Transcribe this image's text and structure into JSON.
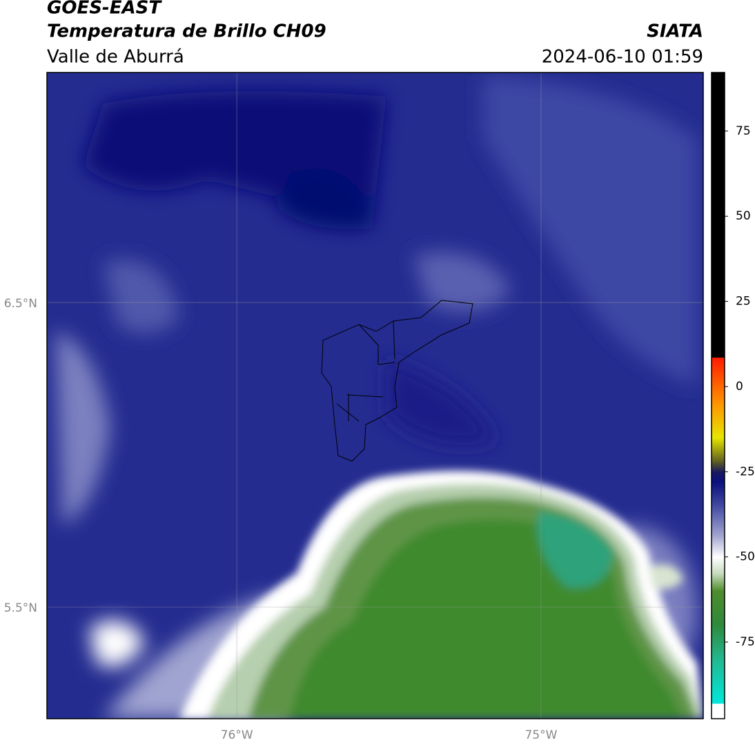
{
  "header": {
    "title": "GOES-EAST",
    "subtitle": "Temperatura de Brillo CH09",
    "region": "Valle de Aburrá",
    "source": "SIATA",
    "datetime": "2024-06-10 01:59"
  },
  "map": {
    "xlim": [
      -76.624,
      -74.467
    ],
    "ylim": [
      5.133,
      7.255
    ],
    "xticks": [
      {
        "value": -76,
        "label": "76°W"
      },
      {
        "value": -75,
        "label": "75°W"
      }
    ],
    "yticks": [
      {
        "value": 5.5,
        "label": "5.5°N"
      },
      {
        "value": 6.5,
        "label": "6.5°N"
      }
    ],
    "grid": true
  },
  "colorbar": {
    "lim": [
      -97.5,
      92.2
    ],
    "ticks": [
      -75,
      -50,
      -25,
      0,
      25,
      50,
      75
    ],
    "stops": [
      {
        "value": -97.5,
        "color": "#ffffff"
      },
      {
        "value": -93,
        "color": "#ffffff"
      },
      {
        "value": -93,
        "color": "#00e8dc"
      },
      {
        "value": -80,
        "color": "#22b890"
      },
      {
        "value": -70,
        "color": "#2e8a3c"
      },
      {
        "value": -60,
        "color": "#4e8c2c"
      },
      {
        "value": -55,
        "color": "#c4dabc"
      },
      {
        "value": -50,
        "color": "#ffffff"
      },
      {
        "value": -44,
        "color": "#a4a8d2"
      },
      {
        "value": -35,
        "color": "#434aa2"
      },
      {
        "value": -28,
        "color": "#0a107e"
      },
      {
        "value": -25,
        "color": "#1a1a60"
      },
      {
        "value": -22,
        "color": "#5e5e22"
      },
      {
        "value": -15,
        "color": "#e6e600"
      },
      {
        "value": -5,
        "color": "#ff9400"
      },
      {
        "value": 8.6,
        "color": "#ff1a00"
      },
      {
        "value": 8.6,
        "color": "#000000"
      },
      {
        "value": 92.2,
        "color": "#000000"
      }
    ]
  }
}
